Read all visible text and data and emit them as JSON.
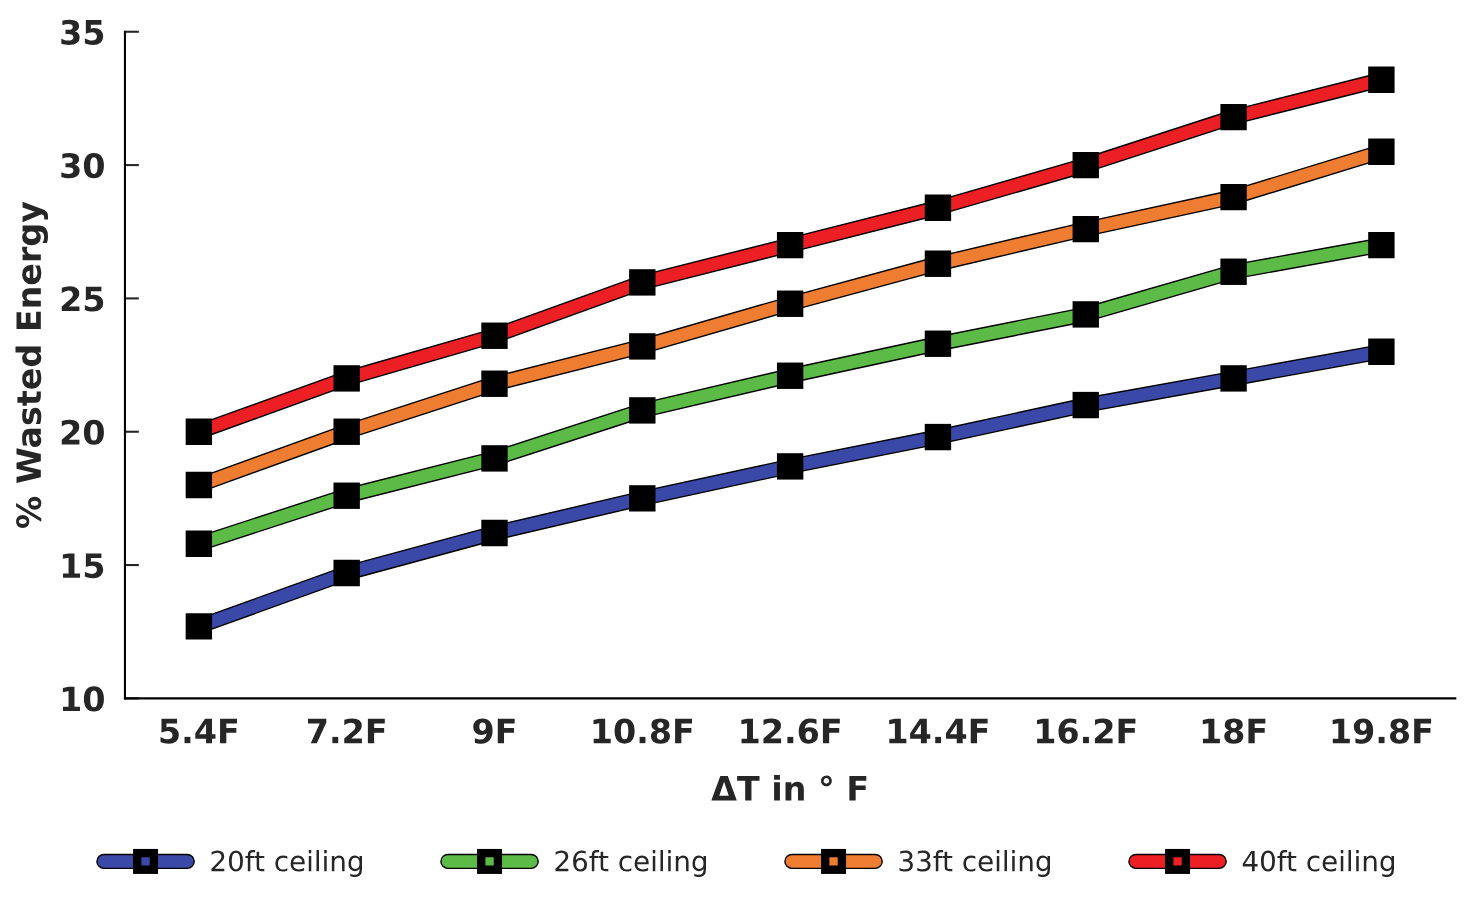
{
  "chart_data": {
    "type": "line",
    "xlabel": "ΔT in ° F",
    "ylabel": "% Wasted Energy",
    "categories": [
      "5.4F",
      "7.2F",
      "9F",
      "10.8F",
      "12.6F",
      "14.4F",
      "16.2F",
      "18F",
      "19.8F"
    ],
    "series": [
      {
        "name": "20ft ceiling",
        "color": "#3a48a8",
        "values": [
          12.7,
          14.7,
          16.2,
          17.5,
          18.7,
          19.8,
          21.0,
          22.0,
          23.0
        ]
      },
      {
        "name": "26ft ceiling",
        "color": "#5cbb46",
        "values": [
          15.8,
          17.6,
          19.0,
          20.8,
          22.1,
          23.3,
          24.4,
          26.0,
          27.0
        ]
      },
      {
        "name": "33ft ceiling",
        "color": "#ee7d31",
        "values": [
          18.0,
          20.0,
          21.8,
          23.2,
          24.8,
          26.3,
          27.6,
          28.8,
          30.5
        ]
      },
      {
        "name": "40ft ceiling",
        "color": "#ec2024",
        "values": [
          20.0,
          22.0,
          23.6,
          25.6,
          27.0,
          28.4,
          30.0,
          31.8,
          33.2
        ]
      }
    ],
    "ylim": [
      10,
      35
    ],
    "yticks": [
      10,
      15,
      20,
      25,
      30,
      35
    ],
    "grid": false,
    "legend": "bottom",
    "marker": "square",
    "line_style": "solid"
  }
}
